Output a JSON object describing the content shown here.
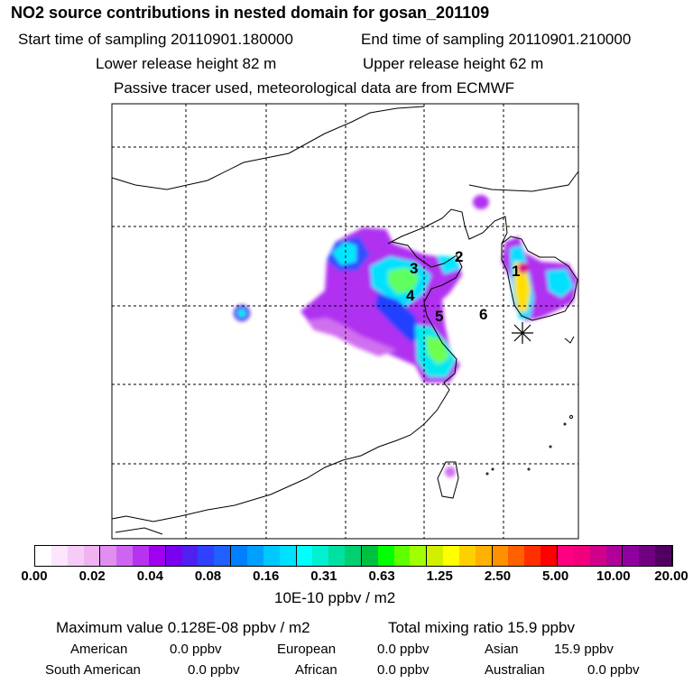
{
  "header": {
    "title": "NO2 source contributions in nested domain for gosan_201109",
    "start_label": "Start time of sampling 20110901.180000",
    "end_label": "End time of sampling 20110901.210000",
    "lower_height_label": "Lower release height   82 m",
    "upper_height_label": "Upper release height   62 m",
    "tracer_note": "Passive tracer used, meteorological data are from ECMWF"
  },
  "map": {
    "region_labels": [
      "1",
      "2",
      "3",
      "4",
      "5",
      "6"
    ],
    "receptor_marker": "gosan-star-icon"
  },
  "colorbar": {
    "tick_labels": [
      "0.00",
      "0.02",
      "0.04",
      "0.08",
      "0.16",
      "0.31",
      "0.63",
      "1.25",
      "2.50",
      "5.00",
      "10.00",
      "20.00"
    ],
    "units": "10E-10 ppbv / m2",
    "colors": [
      "#ffffff",
      "#fbe6fb",
      "#f5ccf5",
      "#f0b3f0",
      "#e08ef0",
      "#cc66f0",
      "#b833f0",
      "#a000f0",
      "#7a00f0",
      "#5020f0",
      "#3040ff",
      "#2060ff",
      "#0080ff",
      "#00a0ff",
      "#00c8ff",
      "#00e0ff",
      "#00ffff",
      "#00f0d0",
      "#00e0a0",
      "#00d070",
      "#00c040",
      "#00ff00",
      "#60ff00",
      "#a0ff00",
      "#d0f000",
      "#ffff00",
      "#ffd000",
      "#ffb000",
      "#ff9000",
      "#ff6000",
      "#ff3000",
      "#ff0000",
      "#ff0080",
      "#f0007a",
      "#d0008a",
      "#b0009a",
      "#9000a0",
      "#700080",
      "#500060"
    ]
  },
  "footer": {
    "max_value": "Maximum value  0.128E-08 ppbv / m2",
    "total_mixing": "Total mixing ratio       15.9 ppbv",
    "american": "American",
    "american_val": "0.0 ppbv",
    "european": "European",
    "european_val": "0.0 ppbv",
    "asian": "Asian",
    "asian_val": "15.9 ppbv",
    "south_american": "South American",
    "south_american_val": "0.0 ppbv",
    "african": "African",
    "african_val": "0.0 ppbv",
    "australian": "Australian",
    "australian_val": "0.0 ppbv"
  }
}
